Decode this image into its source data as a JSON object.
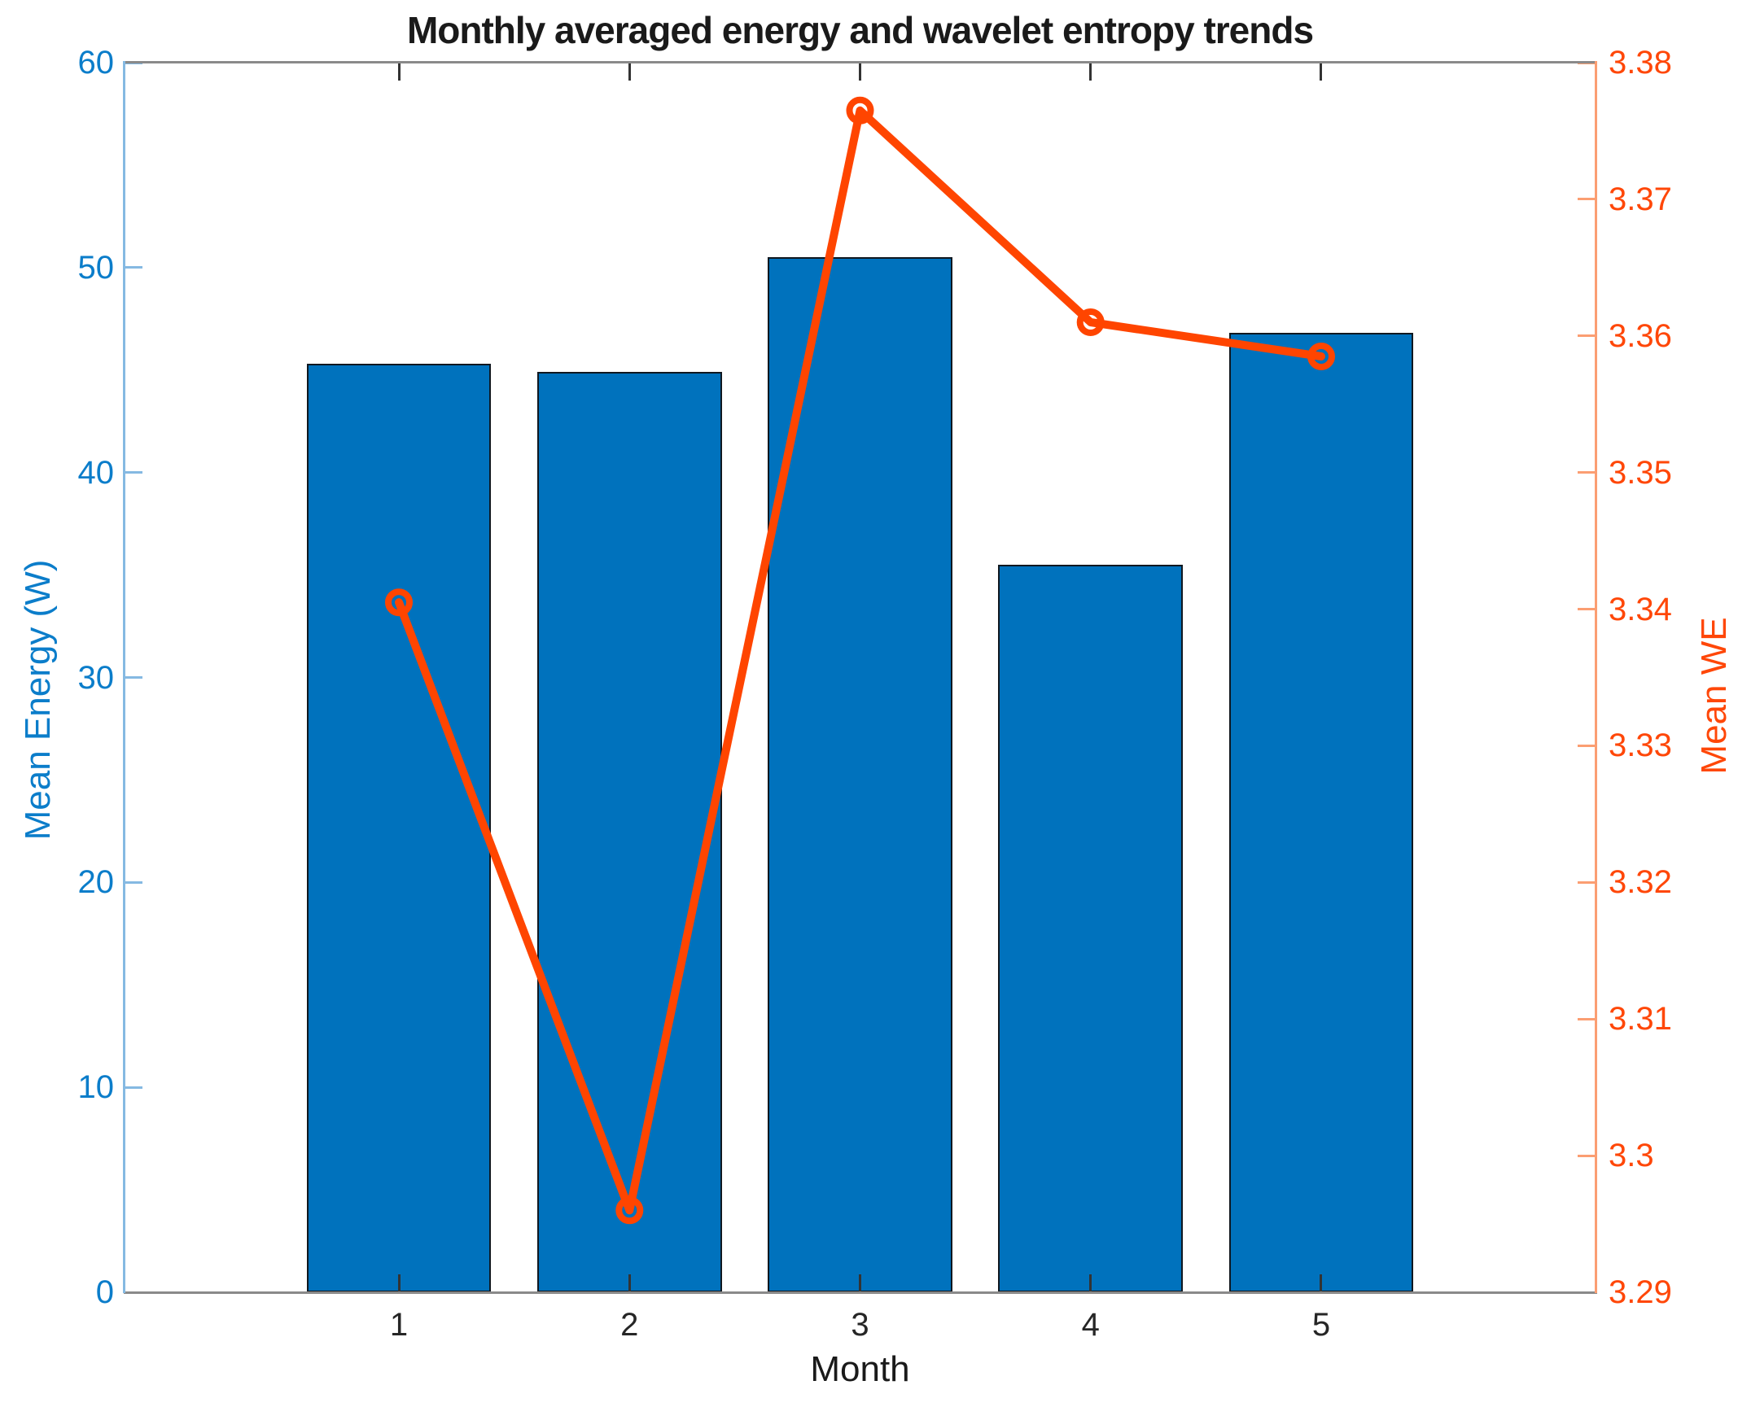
{
  "chart_data": {
    "type": "bar",
    "title": "Monthly averaged energy and wavelet entropy trends",
    "categories": [
      "1",
      "2",
      "3",
      "4",
      "5"
    ],
    "series": [
      {
        "name": "Mean Energy (W)",
        "type": "bar",
        "axis": "left",
        "values": [
          45.3,
          44.9,
          50.5,
          35.5,
          46.8
        ],
        "color": "#0072BD",
        "bar_edge_color": "#101820",
        "bar_width_fraction": 0.8
      },
      {
        "name": "Mean WE",
        "type": "line",
        "axis": "right",
        "values": [
          3.3405,
          3.296,
          3.3765,
          3.361,
          3.3585
        ],
        "color": "#FF4500",
        "marker": "open-circle",
        "line_width": 10,
        "marker_radius": 13,
        "marker_stroke": 8
      }
    ],
    "x_axis": {
      "label": "Month",
      "tick_labels": [
        "1",
        "2",
        "3",
        "4",
        "5"
      ],
      "tick_positions": [
        1,
        2,
        3,
        4,
        5
      ],
      "xlim": [
        -0.19,
        6.19
      ],
      "tick_color": "#333333",
      "label_color": "#262626"
    },
    "left_axis": {
      "label": "Mean Energy (W)",
      "min": 0,
      "max": 60,
      "ticks": [
        0,
        10,
        20,
        30,
        40,
        50,
        60
      ],
      "tick_labels": [
        "0",
        "10",
        "20",
        "30",
        "40",
        "50",
        "60"
      ],
      "text_color": "#0b7dca",
      "axis_line_color": "#85b9e2"
    },
    "right_axis": {
      "label": "Mean WE",
      "min": 3.29,
      "max": 3.38,
      "ticks": [
        3.29,
        3.3,
        3.31,
        3.32,
        3.33,
        3.34,
        3.35,
        3.36,
        3.37,
        3.38
      ],
      "tick_labels": [
        "3.29",
        "3.3",
        "3.31",
        "3.32",
        "3.33",
        "3.34",
        "3.35",
        "3.36",
        "3.37",
        "3.38"
      ],
      "text_color": "#ff4708",
      "axis_line_color": "#fb9e72"
    },
    "box_color": "#8a8a8a",
    "grid": false,
    "legend": null
  }
}
